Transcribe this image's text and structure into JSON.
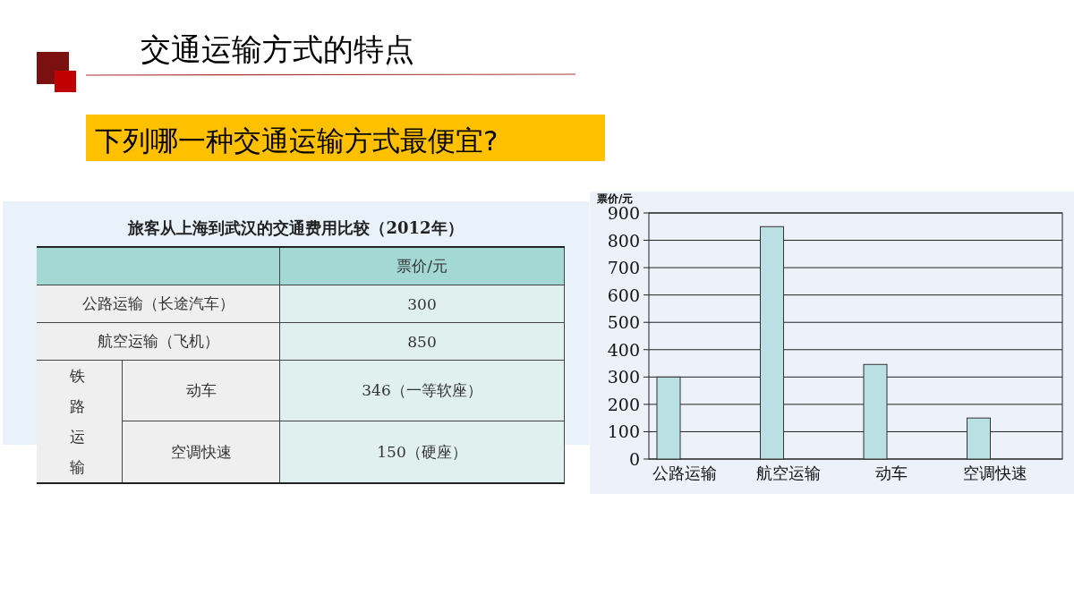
{
  "chart_data": [
    {
      "type": "other",
      "title": "交通运输方式的特点",
      "subtitle": "下列哪一种交通运输方式最便宜?"
    },
    {
      "type": "other",
      "title": "旅客从上海到武汉的交通费用比较（2012年）",
      "annotations": [
        "票价/元",
        "公路运输（长途汽车）",
        "300",
        "航空运输（飞机）",
        "850",
        "铁路运输",
        "动车",
        "346（一等软座）",
        "空调快速",
        "150（硬座）"
      ]
    },
    {
      "type": "bar",
      "ylabel": "票价/元",
      "categories": [
        "公路运输",
        "航空运输",
        "动车",
        "空调快速"
      ],
      "values": [
        300,
        850,
        346,
        150
      ],
      "color": "#b9e1e3",
      "ylim": [
        0,
        900
      ],
      "yticks": [
        0,
        100,
        200,
        300,
        400,
        500,
        600,
        700,
        800,
        900
      ],
      "grid": "y"
    }
  ]
}
